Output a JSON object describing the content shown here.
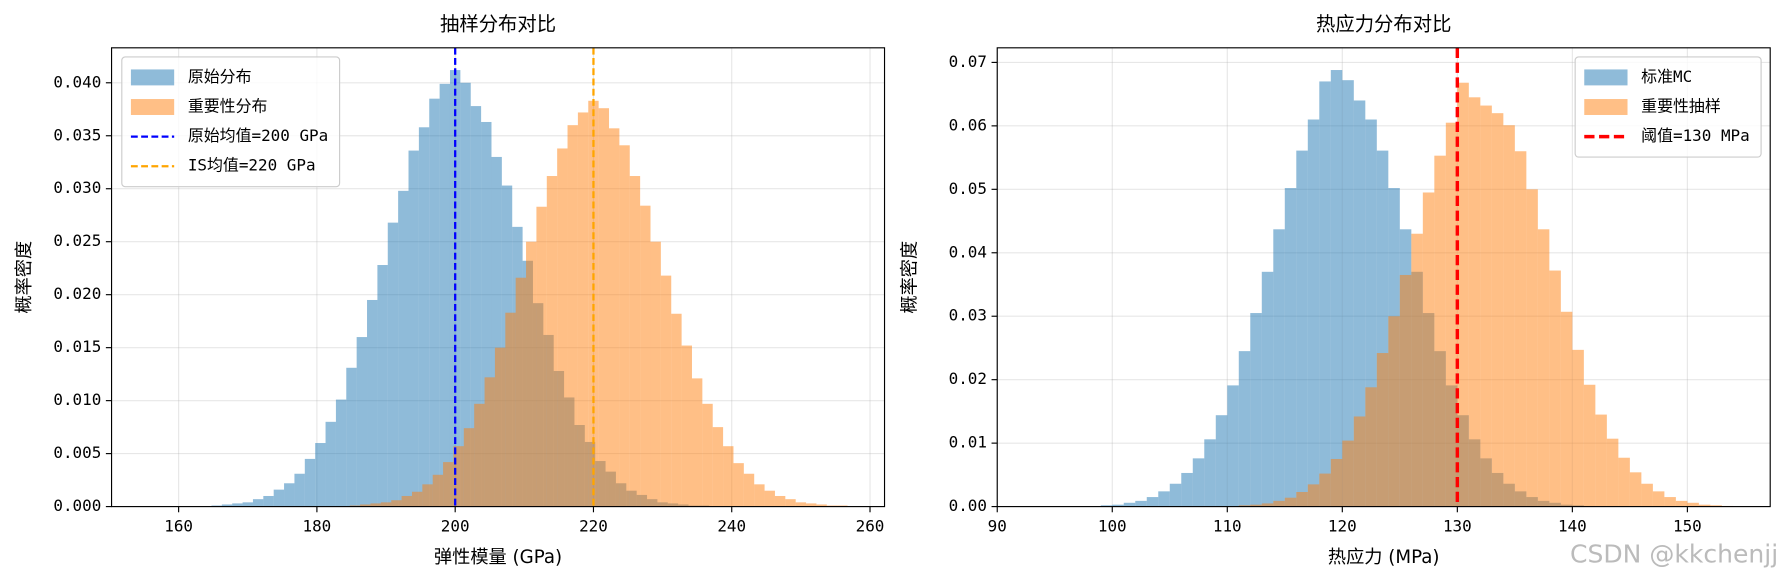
{
  "chart_data": [
    {
      "type": "histogram",
      "title": "抽样分布对比",
      "xlabel": "弹性模量 (GPa)",
      "ylabel": "概率密度",
      "xlim": [
        150.3,
        262.1
      ],
      "ylim": [
        0,
        0.0433
      ],
      "xticks": [
        160,
        180,
        200,
        220,
        240,
        260
      ],
      "yticks": [
        {
          "value": 0,
          "label": "0.000"
        },
        {
          "value": 0.005,
          "label": "0.005"
        },
        {
          "value": 0.01,
          "label": "0.010"
        },
        {
          "value": 0.015,
          "label": "0.015"
        },
        {
          "value": 0.02,
          "label": "0.020"
        },
        {
          "value": 0.025,
          "label": "0.025"
        },
        {
          "value": 0.03,
          "label": "0.030"
        },
        {
          "value": 0.035,
          "label": "0.035"
        },
        {
          "value": 0.04,
          "label": "0.040"
        }
      ],
      "grid": true,
      "legend": "upper left",
      "series": [
        {
          "name": "原始分布",
          "color": "#1f77b4",
          "bins": [
            164.75,
            166.25,
            167.75,
            169.25,
            170.75,
            172.25,
            173.75,
            175.25,
            176.75,
            178.25,
            179.75,
            181.25,
            182.75,
            184.25,
            185.75,
            187.25,
            188.75,
            190.25,
            191.75,
            193.25,
            194.75,
            196.25,
            197.75,
            199.25,
            200.75,
            202.25,
            203.75,
            205.25,
            206.75,
            208.25,
            209.75,
            211.25,
            212.75,
            214.25,
            215.75,
            217.25,
            218.75,
            220.25,
            221.75,
            223.25,
            224.75,
            226.25,
            227.75,
            229.25,
            230.75,
            232.25,
            233.75,
            235.25,
            236.75
          ],
          "values": [
            0.0001,
            0.0002,
            0.0003,
            0.0004,
            0.0007,
            0.001,
            0.0016,
            0.0022,
            0.0031,
            0.0045,
            0.006,
            0.008,
            0.0101,
            0.0131,
            0.016,
            0.0195,
            0.0228,
            0.0268,
            0.0298,
            0.0336,
            0.0358,
            0.0385,
            0.0399,
            0.0412,
            0.04,
            0.0378,
            0.0363,
            0.033,
            0.0303,
            0.0264,
            0.0232,
            0.0192,
            0.0162,
            0.0128,
            0.0103,
            0.0077,
            0.0061,
            0.0043,
            0.0033,
            0.0022,
            0.0015,
            0.0011,
            0.0007,
            0.0004,
            0.0003,
            0.0002,
            0.0001,
            0.0001
          ]
        },
        {
          "name": "重要性分布",
          "color": "#ff7f0e",
          "bins": [
            184.75,
            186.25,
            187.75,
            189.25,
            190.75,
            192.25,
            193.75,
            195.25,
            196.75,
            198.25,
            199.75,
            201.25,
            202.75,
            204.25,
            205.75,
            207.25,
            208.75,
            210.25,
            211.75,
            213.25,
            214.75,
            216.25,
            217.75,
            219.25,
            220.75,
            222.25,
            223.75,
            225.25,
            226.75,
            228.25,
            229.75,
            231.25,
            232.75,
            234.25,
            235.75,
            237.25,
            238.75,
            240.25,
            241.75,
            243.25,
            244.75,
            246.25,
            247.75,
            249.25,
            250.75,
            252.25,
            253.75,
            255.25,
            256.75
          ],
          "values": [
            0.0001,
            0.0002,
            0.0003,
            0.0004,
            0.0006,
            0.001,
            0.0014,
            0.0021,
            0.003,
            0.0042,
            0.0057,
            0.0074,
            0.0097,
            0.0122,
            0.015,
            0.0183,
            0.0216,
            0.025,
            0.0283,
            0.0312,
            0.0338,
            0.036,
            0.0372,
            0.0383,
            0.0376,
            0.0357,
            0.0341,
            0.0312,
            0.0284,
            0.025,
            0.0218,
            0.0182,
            0.0152,
            0.0121,
            0.0097,
            0.0075,
            0.0057,
            0.0041,
            0.0031,
            0.0021,
            0.0015,
            0.001,
            0.0007,
            0.0004,
            0.0003,
            0.0002,
            0.0001,
            0.0001
          ]
        }
      ],
      "vlines": [
        {
          "x": 200,
          "color": "#0000ff",
          "label": "原始均值=200 GPa"
        },
        {
          "x": 220,
          "color": "#ffa500",
          "label": "IS均值=220 GPa"
        }
      ]
    },
    {
      "type": "histogram",
      "title": "热应力分布对比",
      "xlabel": "热应力 (MPa)",
      "ylabel": "概率密度",
      "xlim": [
        90,
        157.2
      ],
      "ylim": [
        0,
        0.0723
      ],
      "xticks": [
        90,
        100,
        110,
        120,
        130,
        140,
        150
      ],
      "yticks": [
        {
          "value": 0,
          "label": "0.00"
        },
        {
          "value": 0.01,
          "label": "0.01"
        },
        {
          "value": 0.02,
          "label": "0.02"
        },
        {
          "value": 0.03,
          "label": "0.03"
        },
        {
          "value": 0.04,
          "label": "0.04"
        },
        {
          "value": 0.05,
          "label": "0.05"
        },
        {
          "value": 0.06,
          "label": "0.06"
        },
        {
          "value": 0.07,
          "label": "0.07"
        }
      ],
      "grid": true,
      "legend": "upper right",
      "series": [
        {
          "name": "标准MC",
          "color": "#1f77b4",
          "bins": [
            99,
            100,
            101,
            102,
            103,
            104,
            105,
            106,
            107,
            108,
            109,
            110,
            111,
            112,
            113,
            114,
            115,
            116,
            117,
            118,
            119,
            120,
            121,
            122,
            123,
            124,
            125,
            126,
            127,
            128,
            129,
            130,
            131,
            132,
            133,
            134,
            135,
            136,
            137,
            138,
            139,
            140,
            141,
            142
          ],
          "values": [
            0.0002,
            0.0003,
            0.0006,
            0.0009,
            0.0015,
            0.0024,
            0.0036,
            0.0053,
            0.0076,
            0.0106,
            0.0144,
            0.0191,
            0.0245,
            0.0305,
            0.037,
            0.0437,
            0.0502,
            0.0561,
            0.061,
            0.067,
            0.0688,
            0.0672,
            0.064,
            0.061,
            0.0561,
            0.0502,
            0.0437,
            0.037,
            0.0305,
            0.0245,
            0.0191,
            0.0144,
            0.0106,
            0.0076,
            0.0053,
            0.0036,
            0.0024,
            0.0015,
            0.0009,
            0.0006,
            0.0003,
            0.0002,
            0.0001
          ]
        },
        {
          "name": "重要性抽样",
          "color": "#ff7f0e",
          "bins": [
            111,
            112,
            113,
            114,
            115,
            116,
            117,
            118,
            119,
            120,
            121,
            122,
            123,
            124,
            125,
            126,
            127,
            128,
            129,
            130,
            131,
            132,
            133,
            134,
            135,
            136,
            137,
            138,
            139,
            140,
            141,
            142,
            143,
            144,
            145,
            146,
            147,
            148,
            149,
            150,
            151,
            152,
            153,
            154
          ],
          "values": [
            0.0002,
            0.0003,
            0.0005,
            0.0009,
            0.0014,
            0.0023,
            0.0035,
            0.0052,
            0.0075,
            0.0104,
            0.0142,
            0.0188,
            0.0242,
            0.03,
            0.0365,
            0.043,
            0.0495,
            0.0553,
            0.0605,
            0.0668,
            0.0645,
            0.0632,
            0.062,
            0.0601,
            0.056,
            0.05,
            0.0437,
            0.0372,
            0.0307,
            0.0247,
            0.0192,
            0.0145,
            0.0107,
            0.0077,
            0.0054,
            0.0036,
            0.0024,
            0.0015,
            0.0009,
            0.0006,
            0.0003,
            0.0002,
            0.0001
          ]
        }
      ],
      "vlines": [
        {
          "x": 130,
          "color": "#ff0000",
          "label": "阈值=130 MPa",
          "width": 3
        }
      ]
    }
  ],
  "watermark": "CSDN @kkchenjj"
}
